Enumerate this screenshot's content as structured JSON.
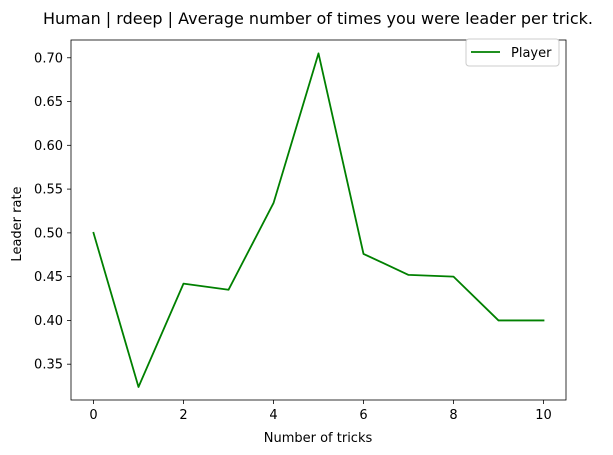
{
  "chart_data": {
    "type": "line",
    "title": "Human | rdeep | Average number of times you were leader per trick.",
    "xlabel": "Number of tricks",
    "ylabel": "Leader rate",
    "x": [
      0,
      1,
      2,
      3,
      4,
      5,
      6,
      7,
      8,
      9,
      10
    ],
    "series": [
      {
        "name": "Player",
        "color": "#008000",
        "values": [
          0.5,
          0.324,
          0.442,
          0.435,
          0.534,
          0.705,
          0.476,
          0.452,
          0.45,
          0.4,
          0.4
        ]
      }
    ],
    "xlim": [
      -0.5,
      10.5
    ],
    "ylim": [
      0.3091,
      0.7203
    ],
    "xticks": [
      0,
      2,
      4,
      6,
      8,
      10
    ],
    "xtick_labels": [
      "0",
      "2",
      "4",
      "6",
      "8",
      "10"
    ],
    "yticks": [
      0.35,
      0.4,
      0.45,
      0.5,
      0.55,
      0.6,
      0.65,
      0.7
    ],
    "ytick_labels": [
      "0.35",
      "0.40",
      "0.45",
      "0.50",
      "0.55",
      "0.60",
      "0.65",
      "0.70"
    ],
    "grid": false,
    "legend_position": "top-right"
  }
}
